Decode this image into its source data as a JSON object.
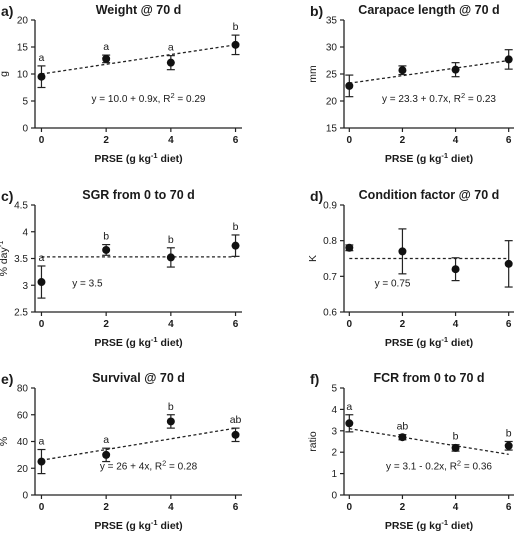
{
  "figure": {
    "panels": [
      {
        "panel_label": "a)",
        "title": "Weight @ 70 d",
        "ylabel": "g",
        "xlabel": "PRSE (g kg-1 diet)",
        "equation": "y = 10.0 + 0.9x, R2 = 0.29"
      },
      {
        "panel_label": "b)",
        "title": "Carapace length @ 70 d",
        "ylabel": "mm",
        "xlabel": "PRSE (g kg-1 diet)",
        "equation": "y = 23.3 + 0.7x, R2 = 0.23"
      },
      {
        "panel_label": "c)",
        "title": "SGR from 0 to 70 d",
        "ylabel": "% day-1",
        "xlabel": "PRSE (g kg-1 diet)",
        "equation": "y = 3.5"
      },
      {
        "panel_label": "d)",
        "title": "Condition factor @ 70 d",
        "ylabel": "K",
        "xlabel": "PRSE (g kg-1 diet)",
        "equation": "y = 0.75"
      },
      {
        "panel_label": "e)",
        "title": "Survival @ 70 d",
        "ylabel": "%",
        "xlabel": "PRSE (g kg-1 diet)",
        "equation": "y = 26 + 4x, R2 = 0.28"
      },
      {
        "panel_label": "f)",
        "title": "FCR from 0 to 70 d",
        "ylabel": "ratio",
        "xlabel": "PRSE (g kg-1 diet)",
        "equation": "y = 3.1 - 0.2x, R2 = 0.36"
      }
    ]
  },
  "chart_data": [
    {
      "type": "scatter",
      "title": "Weight @ 70 d",
      "xlabel": "PRSE (g kg-1 diet)",
      "ylabel": "g",
      "x": [
        0,
        2,
        4,
        6
      ],
      "y": [
        9.5,
        12.8,
        12.1,
        15.4
      ],
      "error": [
        2.0,
        0.7,
        1.3,
        1.8
      ],
      "letters": [
        "a",
        "a",
        "a",
        "b"
      ],
      "fit": {
        "intercept": 10.0,
        "slope": 0.9
      },
      "xticks": [
        0,
        2,
        4,
        6
      ],
      "yticks": [
        0,
        5,
        10,
        15,
        20
      ],
      "xlim": [
        -0.2,
        6.2
      ],
      "ylim": [
        0,
        20
      ]
    },
    {
      "type": "scatter",
      "title": "Carapace length @ 70 d",
      "xlabel": "PRSE (g kg-1 diet)",
      "ylabel": "mm",
      "x": [
        0,
        2,
        4,
        6
      ],
      "y": [
        22.8,
        25.7,
        25.8,
        27.7
      ],
      "error": [
        2.0,
        0.8,
        1.3,
        1.8
      ],
      "letters": [],
      "fit": {
        "intercept": 23.3,
        "slope": 0.7
      },
      "xticks": [
        0,
        2,
        4,
        6
      ],
      "yticks": [
        15,
        20,
        25,
        30,
        35
      ],
      "xlim": [
        -0.2,
        6.2
      ],
      "ylim": [
        15,
        35
      ]
    },
    {
      "type": "scatter",
      "title": "SGR from 0 to 70 d",
      "xlabel": "PRSE (g kg-1 diet)",
      "ylabel": "% day-1",
      "x": [
        0,
        2,
        4,
        6
      ],
      "y": [
        3.06,
        3.66,
        3.52,
        3.74
      ],
      "error": [
        0.3,
        0.1,
        0.18,
        0.2
      ],
      "letters": [
        "a",
        "b",
        "b",
        "b"
      ],
      "fit": {
        "intercept": 3.53,
        "slope": 0
      },
      "xticks": [
        0,
        2,
        4,
        6
      ],
      "yticks": [
        2.5,
        3.0,
        3.5,
        4.0,
        4.5
      ],
      "xlim": [
        -0.2,
        6.2
      ],
      "ylim": [
        2.5,
        4.5
      ]
    },
    {
      "type": "scatter",
      "title": "Condition factor @ 70 d",
      "xlabel": "PRSE (g kg-1 diet)",
      "ylabel": "K",
      "x": [
        0,
        2,
        4,
        6
      ],
      "y": [
        0.78,
        0.77,
        0.72,
        0.735
      ],
      "error": [
        0.008,
        0.063,
        0.032,
        0.065
      ],
      "letters": [],
      "fit": {
        "intercept": 0.75,
        "slope": 0
      },
      "xticks": [
        0,
        2,
        4,
        6
      ],
      "yticks": [
        0.6,
        0.7,
        0.8,
        0.9
      ],
      "xlim": [
        -0.2,
        6.2
      ],
      "ylim": [
        0.6,
        0.9
      ]
    },
    {
      "type": "scatter",
      "title": "Survival @ 70 d",
      "xlabel": "PRSE (g kg-1 diet)",
      "ylabel": "%",
      "x": [
        0,
        2,
        4,
        6
      ],
      "y": [
        25,
        30,
        55,
        45
      ],
      "error": [
        9,
        5,
        5,
        5
      ],
      "letters": [
        "a",
        "a",
        "b",
        "ab"
      ],
      "fit": {
        "intercept": 26,
        "slope": 4
      },
      "xticks": [
        0,
        2,
        4,
        6
      ],
      "yticks": [
        0,
        20,
        40,
        60,
        80
      ],
      "xlim": [
        -0.2,
        6.2
      ],
      "ylim": [
        0,
        80
      ]
    },
    {
      "type": "scatter",
      "title": "FCR from 0 to 70 d",
      "xlabel": "PRSE (g kg-1 diet)",
      "ylabel": "ratio",
      "x": [
        0,
        2,
        4,
        6
      ],
      "y": [
        3.35,
        2.7,
        2.2,
        2.3
      ],
      "error": [
        0.4,
        0.12,
        0.15,
        0.2
      ],
      "letters": [
        "a",
        "ab",
        "b",
        "b"
      ],
      "fit": {
        "intercept": 3.1,
        "slope": -0.2
      },
      "xticks": [
        0,
        2,
        4,
        6
      ],
      "yticks": [
        0,
        1,
        2,
        3,
        4,
        5
      ],
      "xlim": [
        -0.2,
        6.2
      ],
      "ylim": [
        0,
        5
      ]
    }
  ]
}
